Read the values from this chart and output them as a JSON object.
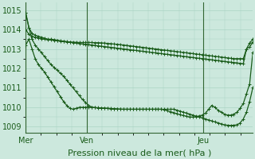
{
  "background_color": "#cce8dd",
  "grid_color": "#aad4c4",
  "line_color": "#1a5c1a",
  "marker": "+",
  "marker_size": 3,
  "linewidth": 0.9,
  "xlabel": "Pression niveau de la mer( hPa )",
  "xlabel_fontsize": 8,
  "tick_label_color": "#1a5c1a",
  "tick_fontsize": 7,
  "vline_color": "#336633",
  "ylim": [
    1008.7,
    1015.4
  ],
  "yticks": [
    1009,
    1010,
    1011,
    1012,
    1013,
    1014,
    1015
  ],
  "vline_xvals": [
    0.0,
    0.27,
    0.78
  ],
  "x_day_labels": [
    "Mer",
    "Ven",
    "Jeu"
  ],
  "series": [
    [
      1014.85,
      1014.1,
      1013.8,
      1013.7,
      1013.65,
      1013.6,
      1013.55,
      1013.5,
      1013.5,
      1013.48,
      1013.45,
      1013.42,
      1013.4,
      1013.38,
      1013.36,
      1013.35,
      1013.34,
      1013.33,
      1013.33,
      1013.33,
      1013.33,
      1013.33,
      1013.32,
      1013.32,
      1013.31,
      1013.3,
      1013.28,
      1013.27,
      1013.25,
      1013.24,
      1013.22,
      1013.2,
      1013.18,
      1013.16,
      1013.14,
      1013.12,
      1013.1,
      1013.08,
      1013.06,
      1013.04,
      1013.02,
      1013.0,
      1012.98,
      1012.96,
      1012.94,
      1012.92,
      1012.9,
      1012.88,
      1012.86,
      1012.84,
      1012.82,
      1012.8,
      1012.78,
      1012.76,
      1012.74,
      1012.72,
      1012.7,
      1012.68,
      1012.66,
      1012.64,
      1012.62,
      1012.6,
      1012.58,
      1012.56,
      1012.54,
      1012.52,
      1012.5,
      1012.5,
      1012.5,
      1012.5,
      1013.0,
      1013.3,
      1013.5
    ],
    [
      1014.0,
      1013.75,
      1013.65,
      1013.6,
      1013.56,
      1013.53,
      1013.5,
      1013.48,
      1013.46,
      1013.44,
      1013.42,
      1013.4,
      1013.38,
      1013.36,
      1013.34,
      1013.32,
      1013.3,
      1013.28,
      1013.26,
      1013.24,
      1013.22,
      1013.2,
      1013.18,
      1013.16,
      1013.14,
      1013.12,
      1013.1,
      1013.08,
      1013.06,
      1013.04,
      1013.02,
      1013.0,
      1012.98,
      1012.96,
      1012.94,
      1012.92,
      1012.9,
      1012.88,
      1012.86,
      1012.84,
      1012.82,
      1012.8,
      1012.78,
      1012.76,
      1012.74,
      1012.72,
      1012.7,
      1012.68,
      1012.66,
      1012.64,
      1012.62,
      1012.6,
      1012.58,
      1012.56,
      1012.54,
      1012.52,
      1012.5,
      1012.48,
      1012.46,
      1012.44,
      1012.42,
      1012.4,
      1012.38,
      1012.36,
      1012.34,
      1012.32,
      1012.3,
      1012.28,
      1012.26,
      1012.24,
      1013.0,
      1013.1,
      1013.35
    ],
    [
      1014.85,
      1014.1,
      1013.5,
      1013.2,
      1013.0,
      1012.8,
      1012.6,
      1012.4,
      1012.2,
      1012.05,
      1011.9,
      1011.75,
      1011.6,
      1011.4,
      1011.2,
      1011.0,
      1010.8,
      1010.6,
      1010.4,
      1010.25,
      1010.1,
      1010.0,
      1009.98,
      1009.97,
      1009.96,
      1009.95,
      1009.94,
      1009.93,
      1009.92,
      1009.91,
      1009.9,
      1009.9,
      1009.9,
      1009.9,
      1009.9,
      1009.9,
      1009.9,
      1009.9,
      1009.9,
      1009.9,
      1009.9,
      1009.9,
      1009.9,
      1009.9,
      1009.87,
      1009.82,
      1009.77,
      1009.72,
      1009.67,
      1009.62,
      1009.58,
      1009.54,
      1009.5,
      1009.5,
      1009.52,
      1009.56,
      1009.6,
      1009.7,
      1009.9,
      1010.1,
      1010.0,
      1009.85,
      1009.75,
      1009.65,
      1009.6,
      1009.6,
      1009.65,
      1009.75,
      1009.95,
      1010.2,
      1010.7,
      1011.2,
      1012.8
    ],
    [
      1013.2,
      1013.5,
      1013.0,
      1012.5,
      1012.2,
      1012.0,
      1011.8,
      1011.55,
      1011.3,
      1011.05,
      1010.8,
      1010.55,
      1010.3,
      1010.1,
      1009.95,
      1009.9,
      1009.95,
      1010.0,
      1010.0,
      1010.0,
      1010.0,
      1010.0,
      1009.99,
      1009.98,
      1009.97,
      1009.96,
      1009.95,
      1009.94,
      1009.93,
      1009.92,
      1009.91,
      1009.9,
      1009.9,
      1009.9,
      1009.9,
      1009.9,
      1009.9,
      1009.9,
      1009.9,
      1009.9,
      1009.9,
      1009.9,
      1009.9,
      1009.9,
      1009.9,
      1009.9,
      1009.9,
      1009.9,
      1009.85,
      1009.8,
      1009.75,
      1009.7,
      1009.65,
      1009.6,
      1009.55,
      1009.5,
      1009.45,
      1009.4,
      1009.35,
      1009.3,
      1009.25,
      1009.2,
      1009.15,
      1009.1,
      1009.08,
      1009.07,
      1009.08,
      1009.1,
      1009.2,
      1009.4,
      1009.75,
      1010.3,
      1011.0
    ]
  ]
}
